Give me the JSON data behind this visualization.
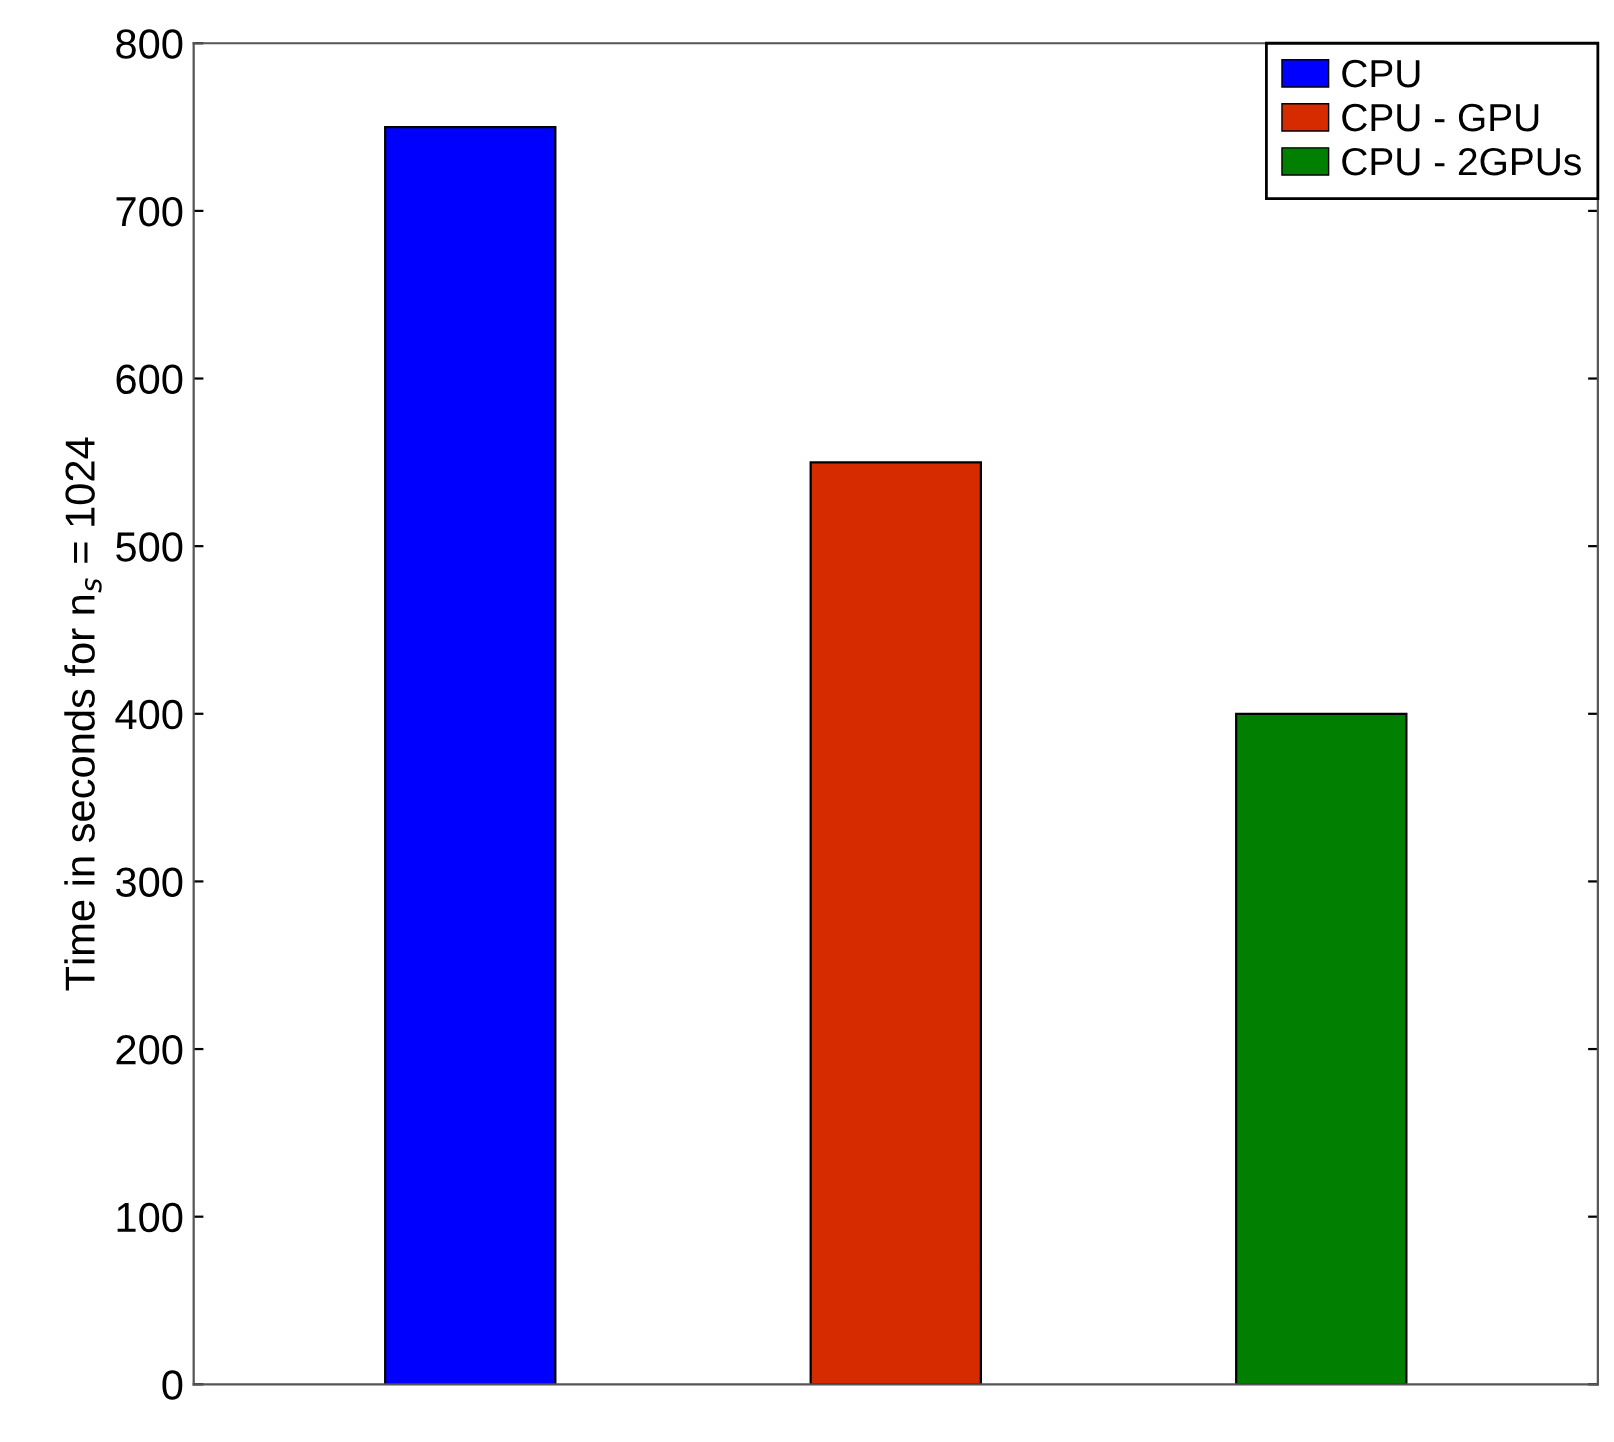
{
  "chart_data": {
    "type": "bar",
    "ylabel": "Time in seconds for n$_{s}$ = 1024",
    "categories": [
      null,
      null,
      null
    ],
    "series": [
      {
        "name": "CPU",
        "color": "#0000ff",
        "values": [
          750,
          null,
          null
        ]
      },
      {
        "name": "CPU - GPU",
        "color": "#d62b00",
        "values": [
          null,
          550,
          null
        ]
      },
      {
        "name": "CPU - 2GPUs",
        "color": "#007f00",
        "values": [
          null,
          null,
          400
        ]
      }
    ],
    "ylim": [
      0,
      800
    ],
    "yticks": [
      0,
      100,
      200,
      300,
      400,
      500,
      600,
      700,
      800
    ],
    "grid": false,
    "legend": "top right"
  }
}
